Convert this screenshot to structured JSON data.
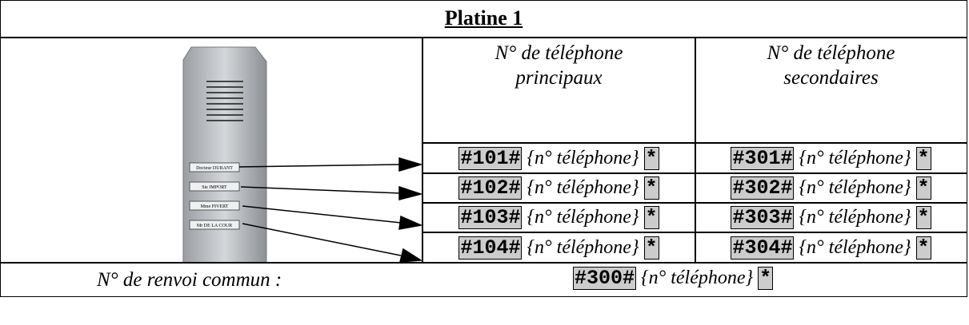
{
  "title": "Platine 1",
  "headers": [
    [
      "N° de téléphone",
      "principaux"
    ],
    [
      "N° de téléphone",
      "secondaires"
    ]
  ],
  "panel_labels": [
    "Docteur DURANT",
    "Ste IMPORT",
    "Mme PIVERT",
    "Mr DE LA COUR"
  ],
  "rows": [
    [
      {
        "code": "#101#",
        "number": "{n° téléphone}",
        "end": "*"
      },
      {
        "code": "#301#",
        "number": "{n° téléphone}",
        "end": "*"
      }
    ],
    [
      {
        "code": "#102#",
        "number": "{n° téléphone}",
        "end": "*"
      },
      {
        "code": "#302#",
        "number": "{n° téléphone}",
        "end": "*"
      }
    ],
    [
      {
        "code": "#103#",
        "number": "{n° téléphone}",
        "end": "*"
      },
      {
        "code": "#303#",
        "number": "{n° téléphone}",
        "end": "*"
      }
    ],
    [
      {
        "code": "#104#",
        "number": "{n° téléphone}",
        "end": "*"
      },
      {
        "code": "#304#",
        "number": "{n° téléphone}",
        "end": "*"
      }
    ]
  ],
  "common": {
    "label": "N° de renvoi commun :",
    "code": "#300#",
    "number": "{n° téléphone}",
    "end": "*"
  }
}
